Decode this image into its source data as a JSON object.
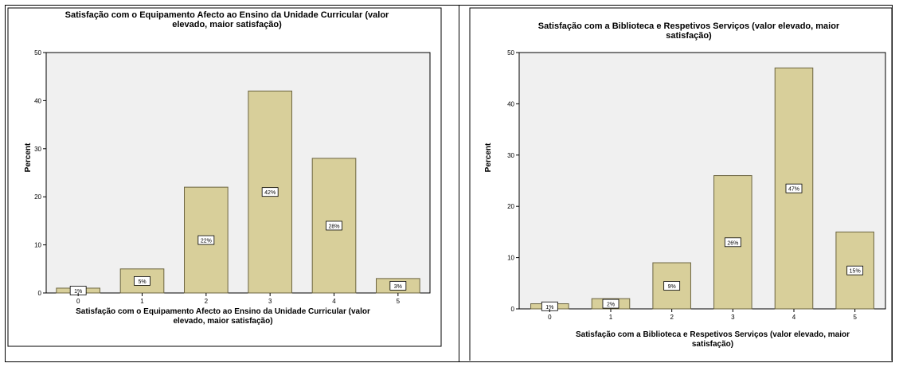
{
  "chart_data": [
    {
      "type": "bar",
      "title": "Satisfação com o Equipamento Afecto ao Ensino da Unidade Curricular (valor elevado, maior satisfação)",
      "title_lines": [
        "Satisfação com o Equipamento Afecto ao Ensino da Unidade Curricular (valor",
        "elevado, maior satisfação)"
      ],
      "xlabel": "Satisfação com o Equipamento Afecto ao Ensino da Unidade Curricular (valor elevado, maior satisfação)",
      "xlabel_lines": [
        "Satisfação com o Equipamento Afecto ao Ensino da Unidade Curricular (valor",
        "elevado, maior satisfação)"
      ],
      "ylabel": "Percent",
      "categories": [
        "0",
        "1",
        "2",
        "3",
        "4",
        "5"
      ],
      "values": [
        1,
        5,
        22,
        42,
        28,
        3
      ],
      "data_labels": [
        "1%",
        "5%",
        "22%",
        "42%",
        "28%",
        "3%"
      ],
      "ylim": [
        0,
        50
      ],
      "yticks": [
        "0",
        "10",
        "20",
        "30",
        "40",
        "50"
      ],
      "bar_color": "#d8cf9a",
      "bar_stroke": "#6b6440",
      "plot_bg": "#f0f0f0"
    },
    {
      "type": "bar",
      "title": "Satisfação com a Biblioteca e Respetivos Serviços (valor elevado, maior satisfação)",
      "title_lines": [
        "Satisfação com a Biblioteca e Respetivos Serviços (valor elevado, maior",
        "satisfação)"
      ],
      "xlabel": "Satisfação com a Biblioteca e Respetivos Serviços (valor elevado, maior satisfação)",
      "xlabel_lines": [
        "Satisfação com a Biblioteca e Respetivos Serviços (valor elevado, maior",
        "satisfação)"
      ],
      "ylabel": "Percent",
      "categories": [
        "0",
        "1",
        "2",
        "3",
        "4",
        "5"
      ],
      "values": [
        1,
        2,
        9,
        26,
        47,
        15
      ],
      "data_labels": [
        "1%",
        "2%",
        "9%",
        "26%",
        "47%",
        "15%"
      ],
      "ylim": [
        0,
        50
      ],
      "yticks": [
        "0",
        "10",
        "20",
        "30",
        "40",
        "50"
      ],
      "bar_color": "#d8cf9a",
      "bar_stroke": "#6b6440",
      "plot_bg": "#f0f0f0"
    }
  ]
}
